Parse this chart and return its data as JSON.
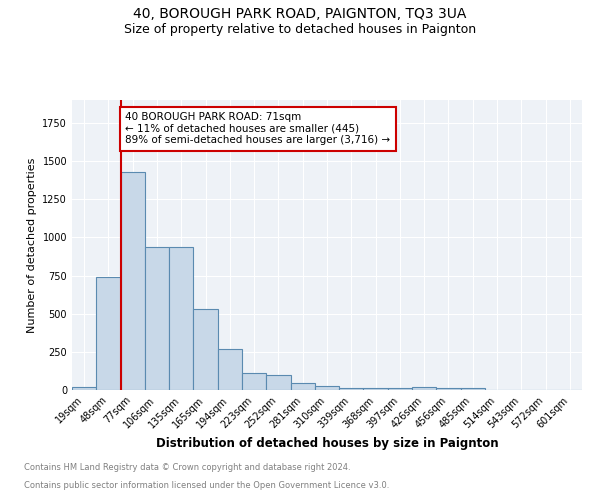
{
  "title": "40, BOROUGH PARK ROAD, PAIGNTON, TQ3 3UA",
  "subtitle": "Size of property relative to detached houses in Paignton",
  "xlabel": "Distribution of detached houses by size in Paignton",
  "ylabel": "Number of detached properties",
  "footnote1": "Contains HM Land Registry data © Crown copyright and database right 2024.",
  "footnote2": "Contains public sector information licensed under the Open Government Licence v3.0.",
  "bar_labels": [
    "19sqm",
    "48sqm",
    "77sqm",
    "106sqm",
    "135sqm",
    "165sqm",
    "194sqm",
    "223sqm",
    "252sqm",
    "281sqm",
    "310sqm",
    "339sqm",
    "368sqm",
    "397sqm",
    "426sqm",
    "456sqm",
    "485sqm",
    "514sqm",
    "543sqm",
    "572sqm",
    "601sqm"
  ],
  "bar_values": [
    22,
    740,
    1430,
    940,
    940,
    530,
    270,
    110,
    100,
    45,
    25,
    15,
    15,
    15,
    20,
    15,
    15,
    0,
    0,
    0,
    0
  ],
  "bar_color": "#c8d8e8",
  "bar_edge_color": "#5a8ab0",
  "bar_edge_width": 0.8,
  "red_line_index": 2,
  "red_line_color": "#cc0000",
  "annotation_text": "40 BOROUGH PARK ROAD: 71sqm\n← 11% of detached houses are smaller (445)\n89% of semi-detached houses are larger (3,716) →",
  "annotation_box_color": "white",
  "annotation_box_edge": "#cc0000",
  "ylim": [
    0,
    1900
  ],
  "plot_background": "#eef2f7",
  "grid_color": "white",
  "title_fontsize": 10,
  "subtitle_fontsize": 9,
  "xlabel_fontsize": 8.5,
  "ylabel_fontsize": 8,
  "tick_fontsize": 7,
  "annotation_fontsize": 7.5,
  "footnote_fontsize": 6
}
